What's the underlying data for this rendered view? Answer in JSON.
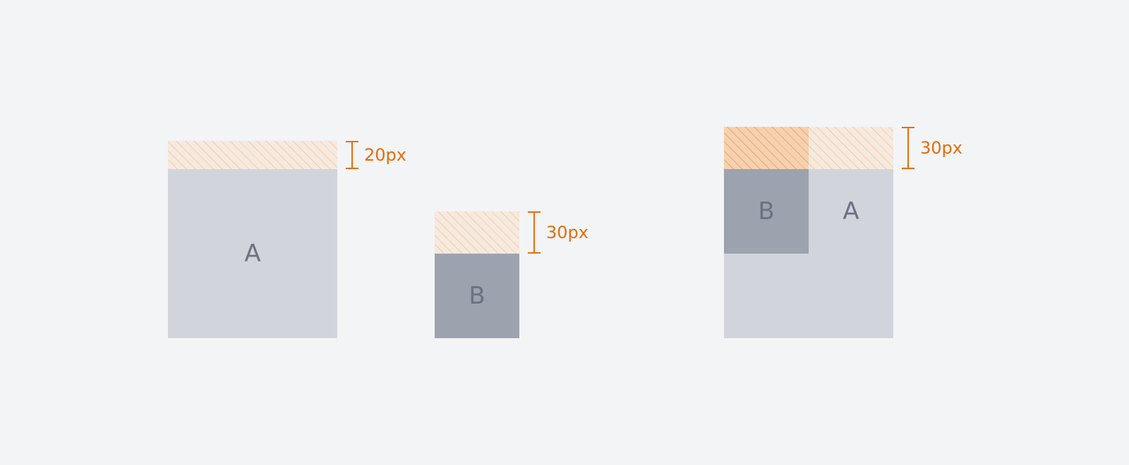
{
  "diagram": {
    "example_a": {
      "box_label": "A",
      "margin_label": "20px"
    },
    "example_b": {
      "box_label": "B",
      "margin_label": "30px"
    },
    "example_combined": {
      "box_b_label": "B",
      "box_a_label": "A",
      "margin_label": "30px"
    },
    "colors": {
      "background": "#f3f4f6",
      "box_a": "#d1d5db",
      "box_b": "#9ca3af",
      "box_text": "#6b7280",
      "accent": "#e36d0c",
      "margin_fill": "#fbd5b0"
    }
  }
}
